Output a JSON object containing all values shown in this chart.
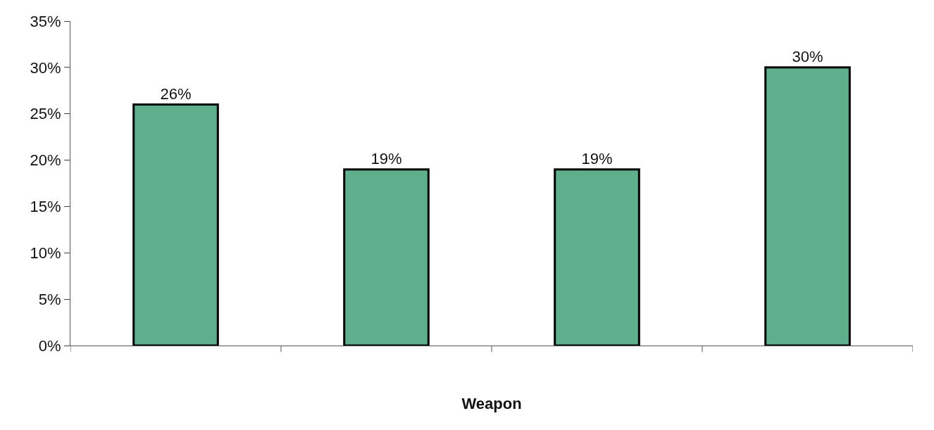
{
  "chart_data": {
    "type": "bar",
    "xlabel": "Weapon",
    "categories": [
      null,
      null,
      null,
      null
    ],
    "values": [
      26,
      19,
      19,
      30
    ],
    "value_labels": [
      "26%",
      "19%",
      "19%",
      "30%"
    ],
    "color": "#5fae8c",
    "ylim": [
      0,
      35
    ],
    "yticks": [
      {
        "value": 0,
        "label": "0%"
      },
      {
        "value": 5,
        "label": "5%"
      },
      {
        "value": 10,
        "label": "10%"
      },
      {
        "value": 15,
        "label": "15%"
      },
      {
        "value": 20,
        "label": "20%"
      },
      {
        "value": 25,
        "label": "25%"
      },
      {
        "value": 30,
        "label": "30%"
      },
      {
        "value": 35,
        "label": "35%"
      }
    ],
    "tick_labels": "y"
  }
}
